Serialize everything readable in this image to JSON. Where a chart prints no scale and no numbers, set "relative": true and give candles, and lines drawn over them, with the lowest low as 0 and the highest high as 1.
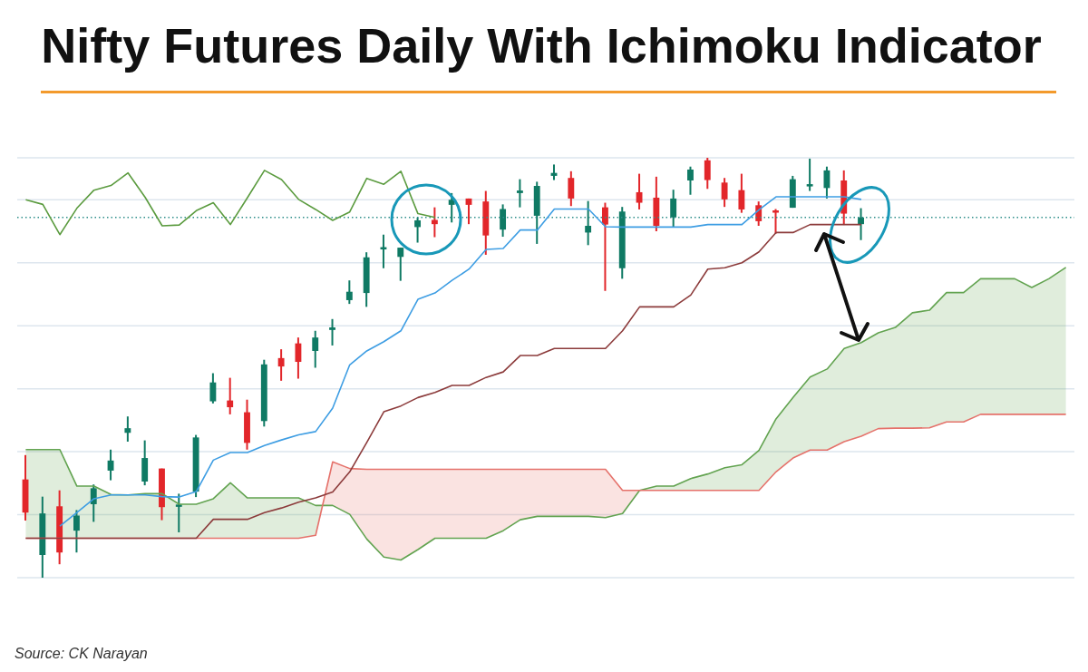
{
  "chart_data": {
    "type": "candlestick",
    "title": "Nifty Futures Daily With Ichimoku Indicator",
    "annotations": [
      "Source: CK Narayan"
    ],
    "relative": true,
    "categories": [
      null,
      null,
      null,
      null,
      null,
      null,
      null,
      null,
      null,
      null,
      null,
      null,
      null,
      null,
      null,
      null,
      null,
      null,
      null,
      null,
      null,
      null,
      null,
      null,
      null,
      null,
      null,
      null,
      null,
      null,
      null,
      null,
      null,
      null,
      null,
      null,
      null,
      null,
      null,
      null,
      null,
      null,
      null,
      null,
      null,
      null,
      null,
      null,
      null,
      null,
      null,
      null,
      null,
      null,
      null,
      null,
      null,
      null,
      null,
      null,
      null,
      null
    ],
    "ohlc": [
      [
        0.234,
        0.292,
        0.136,
        0.155
      ],
      [
        0.054,
        0.193,
        0,
        0.153
      ],
      [
        0.17,
        0.208,
        0.032,
        0.06
      ],
      [
        0.112,
        0.161,
        0.06,
        0.148
      ],
      [
        0.175,
        0.222,
        0.133,
        0.213
      ],
      [
        0.255,
        0.305,
        0.232,
        0.279
      ],
      [
        0.345,
        0.384,
        0.324,
        0.356
      ],
      [
        0.229,
        0.327,
        0.22,
        0.285
      ],
      [
        0.26,
        0.26,
        0.137,
        0.168
      ],
      [
        0.169,
        0.2,
        0.108,
        0.174
      ],
      [
        0.205,
        0.34,
        0.192,
        0.334
      ],
      [
        0.42,
        0.487,
        0.415,
        0.465
      ],
      [
        0.422,
        0.476,
        0.389,
        0.406
      ],
      [
        0.394,
        0.424,
        0.305,
        0.321
      ],
      [
        0.373,
        0.519,
        0.36,
        0.508
      ],
      [
        0.523,
        0.544,
        0.469,
        0.503
      ],
      [
        0.558,
        0.572,
        0.474,
        0.514
      ],
      [
        0.54,
        0.588,
        0.5,
        0.572
      ],
      [
        0.59,
        0.616,
        0.553,
        0.596
      ],
      [
        0.661,
        0.708,
        0.652,
        0.681
      ],
      [
        0.678,
        0.775,
        0.645,
        0.763
      ],
      [
        0.783,
        0.817,
        0.737,
        0.786
      ],
      [
        0.764,
        0.786,
        0.707,
        0.786
      ],
      [
        0.835,
        0.858,
        0.798,
        0.851
      ],
      [
        0.852,
        0.882,
        0.811,
        0.842
      ],
      [
        0.888,
        0.916,
        0.846,
        0.9
      ],
      [
        0.903,
        0.903,
        0.842,
        0.888
      ],
      [
        0.896,
        0.921,
        0.769,
        0.815
      ],
      [
        0.829,
        0.889,
        0.812,
        0.878
      ],
      [
        0.916,
        0.949,
        0.882,
        0.922
      ],
      [
        0.862,
        0.943,
        0.795,
        0.933
      ],
      [
        0.957,
        0.984,
        0.947,
        0.964
      ],
      [
        0.952,
        0.968,
        0.885,
        0.903
      ],
      [
        0.822,
        0.897,
        0.792,
        0.838
      ],
      [
        0.882,
        0.893,
        0.683,
        0.841
      ],
      [
        0.737,
        0.883,
        0.712,
        0.872
      ],
      [
        0.918,
        0.962,
        0.877,
        0.893
      ],
      [
        0.905,
        0.955,
        0.825,
        0.838
      ],
      [
        0.858,
        0.924,
        0.834,
        0.903
      ],
      [
        0.946,
        0.979,
        0.912,
        0.972
      ],
      [
        0.994,
        1,
        0.926,
        0.947
      ],
      [
        0.941,
        0.952,
        0.883,
        0.901
      ],
      [
        0.923,
        0.962,
        0.869,
        0.877
      ],
      [
        0.887,
        0.896,
        0.838,
        0.849
      ],
      [
        0.874,
        0.878,
        0.819,
        0.87
      ],
      [
        0.881,
        0.957,
        0.881,
        0.949
      ],
      [
        0.932,
        0.998,
        0.921,
        0.937
      ],
      [
        0.928,
        0.979,
        0.903,
        0.97
      ],
      [
        0.946,
        0.97,
        0.84,
        0.867
      ],
      [
        0.842,
        0.88,
        0.804,
        0.858
      ],
      null,
      null,
      null,
      null,
      null,
      null,
      null,
      null,
      null,
      null,
      null,
      null
    ],
    "colors": [
      "#e2262a",
      "#0f7a64",
      "#e2262a",
      "#0f7a64",
      "#0f7a64",
      "#0f7a64",
      "#0f7a64",
      "#0f7a64",
      "#e2262a",
      "#0f7a64",
      "#0f7a64",
      "#0f7a64",
      "#e2262a",
      "#e2262a",
      "#0f7a64",
      "#e2262a",
      "#e2262a",
      "#0f7a64",
      "#0f7a64",
      "#0f7a64",
      "#0f7a64",
      "#0f7a64",
      "#0f7a64",
      "#0f7a64",
      "#e2262a",
      "#0f7a64",
      "#e2262a",
      "#e2262a",
      "#0f7a64",
      "#0f7a64",
      "#0f7a64",
      "#0f7a64",
      "#e2262a",
      "#0f7a64",
      "#e2262a",
      "#0f7a64",
      "#e2262a",
      "#e2262a",
      "#0f7a64",
      "#0f7a64",
      "#e2262a",
      "#e2262a",
      "#e2262a",
      "#e2262a",
      "#e2262a",
      "#0f7a64",
      "#0f7a64",
      "#0f7a64",
      "#e2262a",
      "#0f7a64",
      null,
      null,
      null,
      null,
      null,
      null,
      null,
      null,
      null,
      null,
      null,
      null
    ],
    "series": [
      {
        "type": "area",
        "color": "#62a350",
        "values": [
          0.305,
          0.305,
          0.305,
          0.218,
          0.218,
          0.198,
          0.197,
          0.2,
          0.2,
          0.175,
          0.175,
          0.188,
          0.226,
          0.19,
          0.19,
          0.19,
          0.19,
          0.172,
          0.172,
          0.151,
          0.092,
          0.049,
          0.042,
          0.067,
          0.094,
          0.094,
          0.094,
          0.094,
          0.112,
          0.138,
          0.146,
          0.146,
          0.146,
          0.146,
          0.143,
          0.153,
          0.208,
          0.218,
          0.218,
          0.236,
          0.247,
          0.262,
          0.269,
          0.303,
          0.378,
          0.429,
          0.478,
          0.497,
          0.546,
          0.56,
          0.583,
          0.596,
          0.631,
          0.637,
          0.679,
          0.679,
          0.712,
          0.712,
          0.712,
          0.691,
          0.712,
          0.739
        ]
      },
      {
        "type": "area",
        "color": "#e5726b",
        "values": [
          0.094,
          0.094,
          0.094,
          0.094,
          0.094,
          0.094,
          0.094,
          0.094,
          0.094,
          0.094,
          0.094,
          0.094,
          0.094,
          0.094,
          0.094,
          0.094,
          0.094,
          0.101,
          0.276,
          0.26,
          0.258,
          0.258,
          0.258,
          0.258,
          0.258,
          0.258,
          0.258,
          0.258,
          0.258,
          0.258,
          0.258,
          0.258,
          0.258,
          0.258,
          0.258,
          0.208,
          0.208,
          0.208,
          0.208,
          0.208,
          0.208,
          0.208,
          0.208,
          0.208,
          0.252,
          0.285,
          0.304,
          0.304,
          0.324,
          0.337,
          0.355,
          0.356,
          0.356,
          0.357,
          0.371,
          0.371,
          0.389,
          0.389,
          0.389,
          0.389,
          0.389,
          0.389
        ]
      },
      {
        "type": "line",
        "color": "#8c3b3b",
        "values": [
          0.094,
          0.094,
          0.094,
          0.094,
          0.094,
          0.094,
          0.094,
          0.094,
          0.094,
          0.094,
          0.094,
          0.139,
          0.139,
          0.139,
          0.155,
          0.166,
          0.18,
          0.19,
          0.204,
          0.252,
          0.322,
          0.395,
          0.409,
          0.429,
          0.441,
          0.458,
          0.458,
          0.477,
          0.49,
          0.529,
          0.529,
          0.546,
          0.546,
          0.546,
          0.546,
          0.588,
          0.645,
          0.645,
          0.645,
          0.673,
          0.735,
          0.738,
          0.75,
          0.776,
          0.822,
          0.822,
          0.841,
          0.841,
          0.841,
          0.841,
          null,
          null,
          null,
          null,
          null,
          null,
          null,
          null,
          null,
          null,
          null,
          null
        ]
      },
      {
        "type": "line",
        "color": "#3d9de3",
        "values": [
          null,
          null,
          0.123,
          0.155,
          0.188,
          0.197,
          0.197,
          0.197,
          0.193,
          0.192,
          0.205,
          0.28,
          0.298,
          0.298,
          0.315,
          0.328,
          0.34,
          0.348,
          0.404,
          0.507,
          0.54,
          0.562,
          0.588,
          0.663,
          0.678,
          0.708,
          0.735,
          0.782,
          0.784,
          0.828,
          0.828,
          0.878,
          0.878,
          0.878,
          0.836,
          0.835,
          0.835,
          0.835,
          0.835,
          0.835,
          0.841,
          0.841,
          0.841,
          0.876,
          0.907,
          0.907,
          0.907,
          0.907,
          0.907,
          0.901,
          null,
          null,
          null,
          null,
          null,
          null,
          null,
          null,
          null,
          null,
          null,
          null
        ]
      },
      {
        "type": "line",
        "color": "#5b9b3f",
        "values": [
          0.9,
          0.889,
          0.817,
          0.88,
          0.923,
          0.934,
          0.964,
          0.906,
          0.838,
          0.84,
          0.874,
          0.893,
          0.841,
          0.905,
          0.97,
          0.948,
          0.901,
          0.877,
          0.851,
          0.871,
          0.951,
          0.937,
          0.968,
          0.867,
          0.858,
          null,
          null,
          null,
          null,
          null,
          null,
          null,
          null,
          null,
          null,
          null,
          null,
          null,
          null,
          null,
          null,
          null,
          null,
          null,
          null,
          null,
          null,
          null,
          null,
          null,
          null,
          null,
          null,
          null,
          null,
          null,
          null,
          null,
          null,
          null,
          null,
          null
        ]
      }
    ],
    "grid": "y",
    "ref_lines": [
      {
        "axis": "y",
        "value": 0.858,
        "color": "#2e8e8a",
        "line_style": "dotted"
      }
    ]
  }
}
